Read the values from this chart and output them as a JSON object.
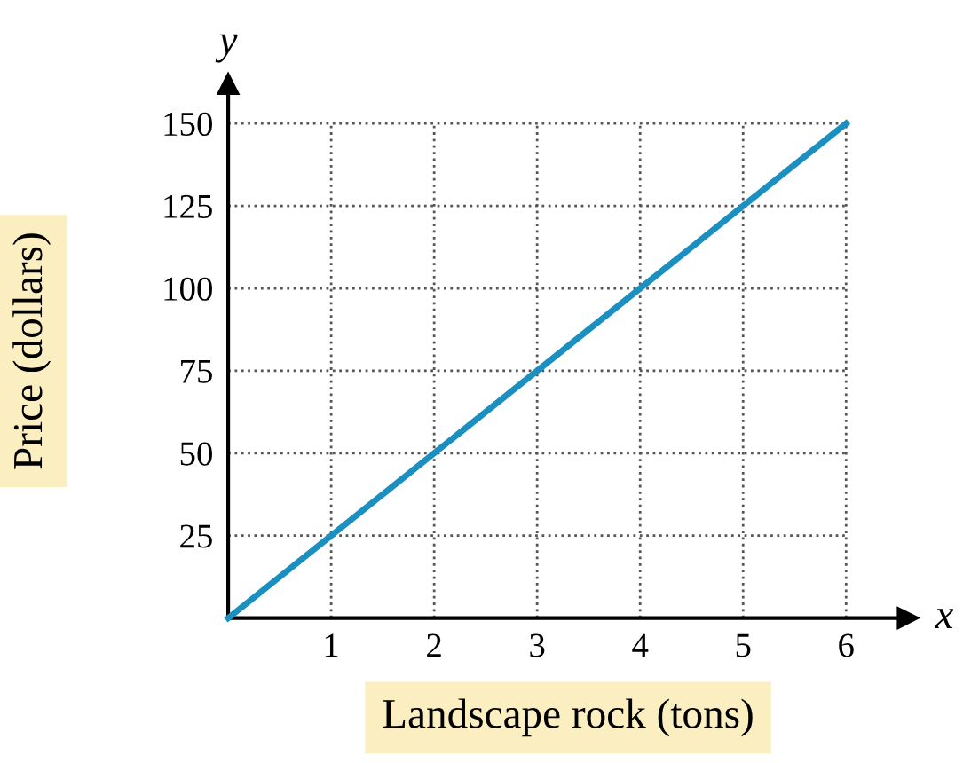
{
  "chart_data": {
    "type": "line",
    "xlabel": "Landscape rock (tons)",
    "ylabel": "Price (dollars)",
    "x": [
      0,
      6
    ],
    "series": [
      {
        "color": "#1a8fc0",
        "values": [
          0,
          150
        ]
      }
    ],
    "xlim": [
      0,
      6.6
    ],
    "ylim": [
      0,
      162
    ],
    "xticks": [
      1,
      2,
      3,
      4,
      5,
      6
    ],
    "yticks": [
      25,
      50,
      75,
      100,
      125,
      150
    ],
    "grid": true,
    "line_style": "solid",
    "marker": "none",
    "annotations": [
      "x",
      "y"
    ]
  }
}
